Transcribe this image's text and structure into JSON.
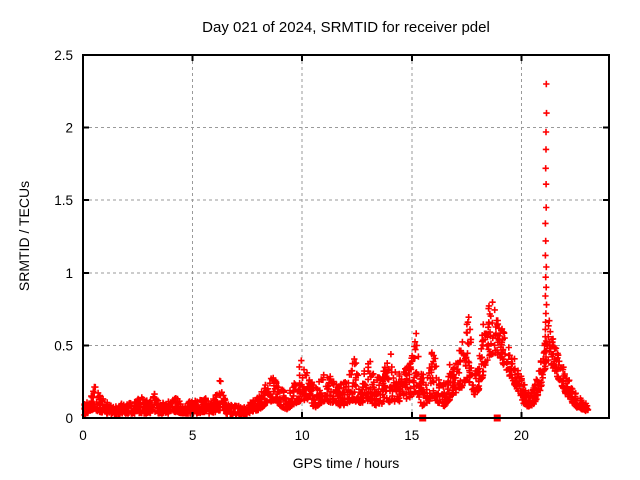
{
  "chart_data": {
    "type": "scatter",
    "title": "Day 021 of 2024, SRMTID for receiver pdel",
    "xlabel": "GPS time / hours",
    "ylabel": "SRMTID / TECUs",
    "xlim": [
      0,
      24
    ],
    "ylim": [
      0,
      2.5
    ],
    "xticks": {
      "values": [
        0,
        5,
        10,
        15,
        20
      ],
      "labels": [
        "0",
        "5",
        "10",
        "15",
        "20"
      ]
    },
    "yticks": {
      "values": [
        0,
        0.5,
        1,
        1.5,
        2,
        2.5
      ],
      "labels": [
        "0",
        "0.5",
        "1",
        "1.5",
        "2",
        "2.5"
      ]
    },
    "grid": "dashed",
    "legend": "none",
    "colors": {
      "marker": "#ff0000",
      "grid": "#9a9a9a",
      "axis": "#000000",
      "background": "#ffffff"
    },
    "series": [
      {
        "name": "srmtid-scatter",
        "marker": "plus",
        "band_lo_hi": [
          [
            0.05,
            0.02,
            0.12
          ],
          [
            0.25,
            0.03,
            0.11
          ],
          [
            0.45,
            0.06,
            0.26
          ],
          [
            0.6,
            0.05,
            0.21
          ],
          [
            0.8,
            0.04,
            0.15
          ],
          [
            1.0,
            0.03,
            0.12
          ],
          [
            1.25,
            0.03,
            0.1
          ],
          [
            1.5,
            0.02,
            0.09
          ],
          [
            1.75,
            0.03,
            0.1
          ],
          [
            2.0,
            0.03,
            0.1
          ],
          [
            2.25,
            0.03,
            0.11
          ],
          [
            2.5,
            0.03,
            0.13
          ],
          [
            2.75,
            0.03,
            0.16
          ],
          [
            3.0,
            0.03,
            0.11
          ],
          [
            3.25,
            0.04,
            0.18
          ],
          [
            3.5,
            0.03,
            0.11
          ],
          [
            3.75,
            0.03,
            0.11
          ],
          [
            4.0,
            0.03,
            0.12
          ],
          [
            4.25,
            0.04,
            0.15
          ],
          [
            4.5,
            0.03,
            0.1
          ],
          [
            4.75,
            0.03,
            0.11
          ],
          [
            5.0,
            0.03,
            0.12
          ],
          [
            5.25,
            0.03,
            0.13
          ],
          [
            5.5,
            0.04,
            0.16
          ],
          [
            5.75,
            0.03,
            0.11
          ],
          [
            6.0,
            0.04,
            0.14
          ],
          [
            6.25,
            0.05,
            0.27
          ],
          [
            6.5,
            0.03,
            0.12
          ],
          [
            6.75,
            0.02,
            0.09
          ],
          [
            7.0,
            0.02,
            0.09
          ],
          [
            7.25,
            0.02,
            0.08
          ],
          [
            7.5,
            0.02,
            0.09
          ],
          [
            7.75,
            0.04,
            0.12
          ],
          [
            8.0,
            0.05,
            0.15
          ],
          [
            8.25,
            0.08,
            0.22
          ],
          [
            8.5,
            0.11,
            0.28
          ],
          [
            8.7,
            0.12,
            0.3
          ],
          [
            8.9,
            0.1,
            0.25
          ],
          [
            9.1,
            0.07,
            0.2
          ],
          [
            9.3,
            0.06,
            0.17
          ],
          [
            9.5,
            0.08,
            0.22
          ],
          [
            9.7,
            0.1,
            0.27
          ],
          [
            9.95,
            0.12,
            0.42
          ],
          [
            10.15,
            0.12,
            0.34
          ],
          [
            10.35,
            0.1,
            0.29
          ],
          [
            10.6,
            0.07,
            0.21
          ],
          [
            10.85,
            0.1,
            0.27
          ],
          [
            11.1,
            0.12,
            0.33
          ],
          [
            11.35,
            0.1,
            0.28
          ],
          [
            11.6,
            0.09,
            0.25
          ],
          [
            11.85,
            0.08,
            0.24
          ],
          [
            12.1,
            0.1,
            0.3
          ],
          [
            12.35,
            0.12,
            0.44
          ],
          [
            12.6,
            0.1,
            0.3
          ],
          [
            12.85,
            0.11,
            0.33
          ],
          [
            13.05,
            0.12,
            0.44
          ],
          [
            13.3,
            0.09,
            0.28
          ],
          [
            13.55,
            0.08,
            0.3
          ],
          [
            13.8,
            0.1,
            0.36
          ],
          [
            14.05,
            0.11,
            0.44
          ],
          [
            14.3,
            0.1,
            0.3
          ],
          [
            14.55,
            0.11,
            0.31
          ],
          [
            14.8,
            0.13,
            0.36
          ],
          [
            15.0,
            0.15,
            0.42
          ],
          [
            15.2,
            0.18,
            0.62
          ],
          [
            15.45,
            0.08,
            0.3
          ],
          [
            15.7,
            0.1,
            0.32
          ],
          [
            15.95,
            0.14,
            0.52
          ],
          [
            16.2,
            0.1,
            0.3
          ],
          [
            16.5,
            0.08,
            0.26
          ],
          [
            16.8,
            0.14,
            0.4
          ],
          [
            17.1,
            0.18,
            0.47
          ],
          [
            17.35,
            0.22,
            0.6
          ],
          [
            17.6,
            0.25,
            0.7
          ],
          [
            17.85,
            0.15,
            0.4
          ],
          [
            18.1,
            0.2,
            0.5
          ],
          [
            18.35,
            0.35,
            0.75
          ],
          [
            18.55,
            0.42,
            0.84
          ],
          [
            18.75,
            0.45,
            0.8
          ],
          [
            18.95,
            0.42,
            0.72
          ],
          [
            19.15,
            0.38,
            0.62
          ],
          [
            19.35,
            0.3,
            0.55
          ],
          [
            19.6,
            0.25,
            0.45
          ],
          [
            19.85,
            0.18,
            0.35
          ],
          [
            20.1,
            0.1,
            0.24
          ],
          [
            20.35,
            0.07,
            0.18
          ],
          [
            20.6,
            0.1,
            0.24
          ],
          [
            20.85,
            0.18,
            0.38
          ],
          [
            21.05,
            0.28,
            0.5
          ],
          [
            21.25,
            0.4,
            0.72
          ],
          [
            21.45,
            0.34,
            0.56
          ],
          [
            21.65,
            0.28,
            0.46
          ],
          [
            21.85,
            0.22,
            0.38
          ],
          [
            22.05,
            0.16,
            0.3
          ],
          [
            22.25,
            0.12,
            0.25
          ],
          [
            22.45,
            0.08,
            0.18
          ],
          [
            22.65,
            0.06,
            0.14
          ],
          [
            22.85,
            0.05,
            0.12
          ],
          [
            23.05,
            0.04,
            0.1
          ]
        ],
        "spike_column": {
          "x": 21.12,
          "values": [
            2.3,
            2.1,
            1.97,
            1.85,
            1.72,
            1.61,
            1.45,
            1.34,
            1.22,
            1.12,
            1.04,
            0.97,
            0.9,
            0.84,
            0.78,
            0.72,
            0.66,
            0.61,
            0.56,
            0.51,
            0.46,
            0.42,
            0.38,
            0.34
          ]
        }
      },
      {
        "name": "event-markers",
        "marker": "filled-square",
        "points": [
          [
            15.5,
            0.0
          ],
          [
            18.9,
            0.0
          ]
        ]
      }
    ],
    "render": {
      "seed": 20240121,
      "points_per_hour": 80,
      "bias_power": 1.5,
      "marker_half": 3.2,
      "square_size": 7
    }
  }
}
